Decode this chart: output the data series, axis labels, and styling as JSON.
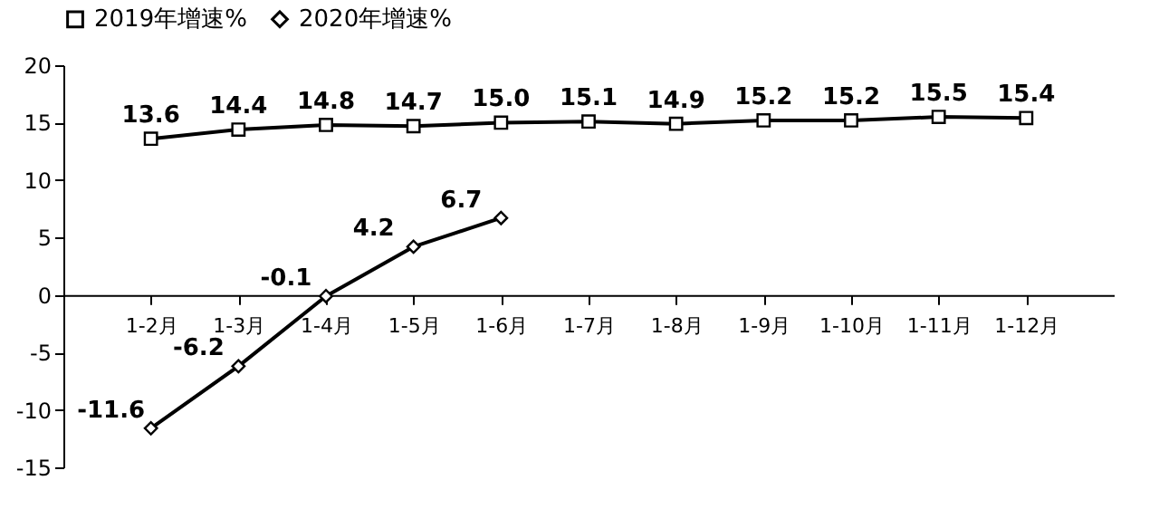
{
  "chart_data": {
    "type": "line",
    "categories": [
      "1-2月",
      "1-3月",
      "1-4月",
      "1-5月",
      "1-6月",
      "1-7月",
      "1-8月",
      "1-9月",
      "1-10月",
      "1-11月",
      "1-12月"
    ],
    "series": [
      {
        "name": "2019年增速%",
        "color": "#000000",
        "marker": "square",
        "values": [
          13.6,
          14.4,
          14.8,
          14.7,
          15.0,
          15.1,
          14.9,
          15.2,
          15.2,
          15.5,
          15.4
        ],
        "value_labels": [
          "13.6",
          "14.4",
          "14.8",
          "14.7",
          "15.0",
          "15.1",
          "14.9",
          "15.2",
          "15.2",
          "15.5",
          "15.4"
        ]
      },
      {
        "name": "2020年增速%",
        "color": "#000000",
        "marker": "diamond",
        "values": [
          -11.6,
          -6.2,
          -0.1,
          4.2,
          6.7,
          null,
          null,
          null,
          null,
          null,
          null
        ],
        "value_labels": [
          "-11.6",
          "-6.2",
          "-0.1",
          "4.2",
          "6.7",
          null,
          null,
          null,
          null,
          null,
          null
        ]
      }
    ],
    "ylim": [
      -15,
      20
    ],
    "yticks": [
      -15,
      -10,
      -5,
      0,
      5,
      10,
      15,
      20
    ],
    "grid": false,
    "legend": "top"
  }
}
